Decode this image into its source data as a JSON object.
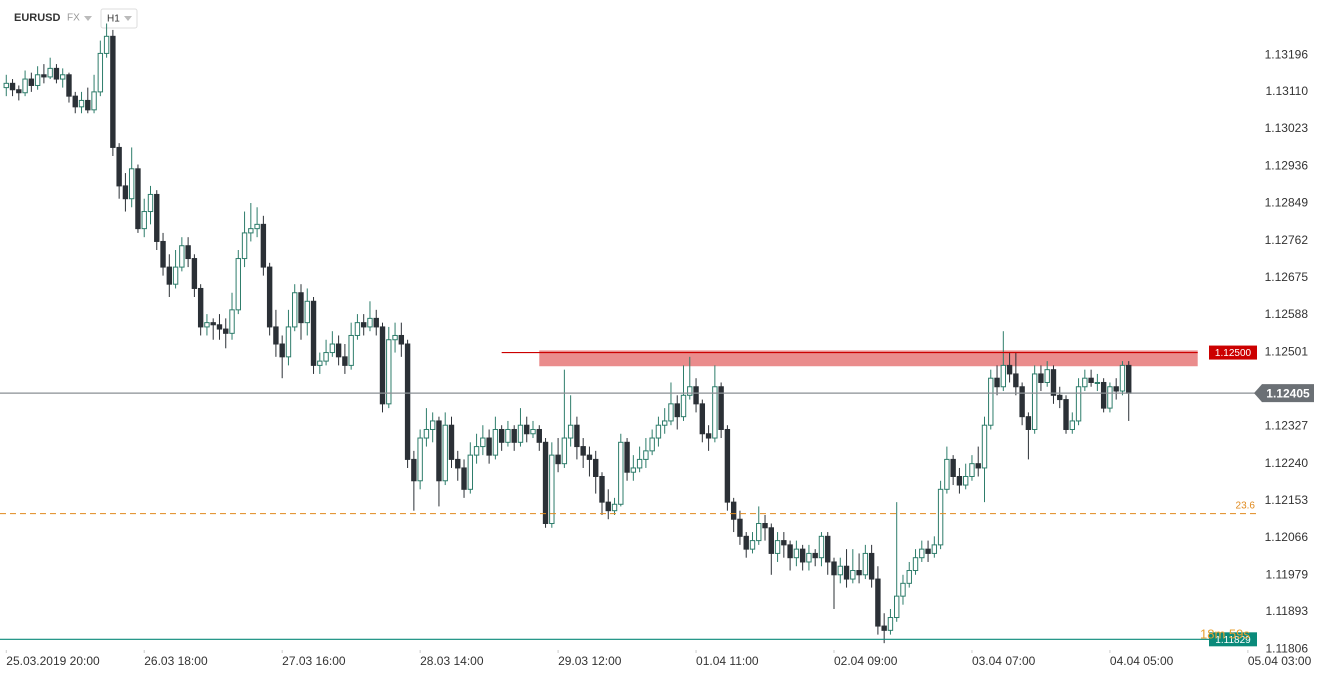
{
  "chart_data": {
    "type": "candlestick",
    "symbol": "EURUSD",
    "market": "FX",
    "interval": "H1",
    "countdown": "18m 59s",
    "up_color": "#2e7d6b",
    "down_color": "#2b3036",
    "open": [
      1.1312,
      1.1313,
      1.13115,
      1.13108,
      1.1314,
      1.13125,
      1.1315,
      1.13145,
      1.13165,
      1.1314,
      1.1315,
      1.131,
      1.13075,
      1.1309,
      1.13068,
      1.1311,
      1.132,
      1.1324,
      1.1298,
      1.1289,
      1.1286,
      1.1293,
      1.1279,
      1.1283,
      1.1287,
      1.1276,
      1.127,
      1.1266,
      1.127,
      1.1275,
      1.1272,
      1.1265,
      1.1256,
      1.1257,
      1.12565,
      1.12555,
      1.12545,
      1.126,
      1.1272,
      1.1278,
      1.1279,
      1.128,
      1.127,
      1.1256,
      1.1252,
      1.1249,
      1.1256,
      1.1264,
      1.1257,
      1.1262,
      1.1247,
      1.1248,
      1.125,
      1.1252,
      1.1249,
      1.1247,
      1.1254,
      1.1257,
      1.1256,
      1.1258,
      1.1256,
      1.1238,
      1.1253,
      1.1254,
      1.1252,
      1.1225,
      1.122,
      1.123,
      1.1232,
      1.1234,
      1.122,
      1.1233,
      1.1225,
      1.1223,
      1.1218,
      1.1226,
      1.1228,
      1.123,
      1.1226,
      1.1232,
      1.1229,
      1.1232,
      1.1229,
      1.1233,
      1.1231,
      1.1232,
      1.1229,
      1.121,
      1.1226,
      1.1224,
      1.123,
      1.1233,
      1.1228,
      1.1226,
      1.1225,
      1.1221,
      1.1215,
      1.1213,
      1.12145,
      1.1229,
      1.1222,
      1.1223,
      1.1225,
      1.1227,
      1.123,
      1.1233,
      1.1234,
      1.1238,
      1.1235,
      1.124,
      1.1242,
      1.1238,
      1.1231,
      1.123,
      1.1242,
      1.1232,
      1.1215,
      1.1211,
      1.1207,
      1.1204,
      1.1206,
      1.121,
      1.1209,
      1.1203,
      1.1206,
      1.1205,
      1.1202,
      1.1204,
      1.1201,
      1.1203,
      1.1202,
      1.1207,
      1.1201,
      1.1198,
      1.12,
      1.1197,
      1.1199,
      1.1198,
      1.1203,
      1.1197,
      1.1186,
      1.1185,
      1.1188,
      1.1193,
      1.1196,
      1.1199,
      1.1202,
      1.1204,
      1.1203,
      1.1205,
      1.1218,
      1.1225,
      1.1221,
      1.1219,
      1.1221,
      1.1224,
      1.1223,
      1.1233,
      1.1244,
      1.1242,
      1.1247,
      1.1245,
      1.1242,
      1.1235,
      1.1232,
      1.1245,
      1.1243,
      1.1246,
      1.124,
      1.1239,
      1.1232,
      1.1234,
      1.1242,
      1.1244,
      1.1243,
      1.1243,
      1.1237,
      1.1242,
      1.1241,
      1.1247
    ],
    "high": [
      1.1315,
      1.1314,
      1.13125,
      1.1316,
      1.13155,
      1.1317,
      1.13175,
      1.1319,
      1.13175,
      1.13165,
      1.13155,
      1.1311,
      1.1311,
      1.1312,
      1.1315,
      1.1323,
      1.1327,
      1.13255,
      1.1299,
      1.1292,
      1.1298,
      1.1294,
      1.1286,
      1.1289,
      1.1288,
      1.1278,
      1.1273,
      1.1274,
      1.1277,
      1.1277,
      1.1273,
      1.1266,
      1.1259,
      1.1258,
      1.1259,
      1.1258,
      1.1264,
      1.1274,
      1.1283,
      1.1285,
      1.1284,
      1.1282,
      1.1271,
      1.126,
      1.1254,
      1.126,
      1.1266,
      1.1266,
      1.1265,
      1.1263,
      1.125,
      1.1253,
      1.1255,
      1.1254,
      1.1252,
      1.1257,
      1.1259,
      1.1259,
      1.1262,
      1.126,
      1.1257,
      1.1256,
      1.1257,
      1.1257,
      1.1253,
      1.1227,
      1.1232,
      1.1237,
      1.1236,
      1.1235,
      1.1236,
      1.1235,
      1.1227,
      1.1225,
      1.1229,
      1.1231,
      1.1233,
      1.1232,
      1.1235,
      1.1233,
      1.1234,
      1.1233,
      1.1237,
      1.1235,
      1.1234,
      1.1233,
      1.123,
      1.1229,
      1.123,
      1.1246,
      1.124,
      1.1235,
      1.123,
      1.1228,
      1.1227,
      1.1222,
      1.1218,
      1.1216,
      1.1231,
      1.123,
      1.1226,
      1.1228,
      1.123,
      1.1232,
      1.1235,
      1.1237,
      1.1243,
      1.124,
      1.1247,
      1.1249,
      1.1244,
      1.1239,
      1.1233,
      1.1247,
      1.1243,
      1.1233,
      1.1216,
      1.1213,
      1.1208,
      1.1208,
      1.1214,
      1.1212,
      1.121,
      1.1208,
      1.1208,
      1.1206,
      1.1206,
      1.1205,
      1.1205,
      1.1204,
      1.1208,
      1.1208,
      1.1202,
      1.1202,
      1.1204,
      1.1204,
      1.1203,
      1.1205,
      1.1205,
      1.12,
      1.1189,
      1.119,
      1.1215,
      1.1198,
      1.1201,
      1.1204,
      1.1206,
      1.1206,
      1.1207,
      1.122,
      1.1228,
      1.1226,
      1.1223,
      1.1224,
      1.1226,
      1.1228,
      1.1235,
      1.1246,
      1.1247,
      1.1255,
      1.125,
      1.125,
      1.1243,
      1.1236,
      1.1247,
      1.1247,
      1.1248,
      1.1247,
      1.1242,
      1.124,
      1.1236,
      1.1244,
      1.1246,
      1.1246,
      1.1245,
      1.1244,
      1.1243,
      1.1244,
      1.1248,
      1.1248
    ],
    "low": [
      1.131,
      1.131,
      1.1309,
      1.131,
      1.1311,
      1.13115,
      1.1313,
      1.1314,
      1.1313,
      1.1312,
      1.13085,
      1.1306,
      1.1306,
      1.1306,
      1.1306,
      1.131,
      1.1319,
      1.1296,
      1.1286,
      1.1283,
      1.1284,
      1.1278,
      1.1277,
      1.128,
      1.1274,
      1.1268,
      1.1263,
      1.1265,
      1.1269,
      1.127,
      1.1263,
      1.1254,
      1.1254,
      1.1253,
      1.1253,
      1.1251,
      1.1253,
      1.1259,
      1.127,
      1.1276,
      1.1277,
      1.1268,
      1.1254,
      1.1249,
      1.1244,
      1.1247,
      1.1255,
      1.1253,
      1.1254,
      1.1245,
      1.1245,
      1.1247,
      1.1249,
      1.1247,
      1.1245,
      1.1246,
      1.1253,
      1.1254,
      1.1255,
      1.1254,
      1.1236,
      1.1237,
      1.125,
      1.1249,
      1.1223,
      1.1213,
      1.1218,
      1.1228,
      1.1229,
      1.1214,
      1.1219,
      1.1223,
      1.122,
      1.1216,
      1.1217,
      1.1224,
      1.1226,
      1.1224,
      1.1225,
      1.1227,
      1.1228,
      1.1227,
      1.1228,
      1.1229,
      1.123,
      1.1227,
      1.1209,
      1.1209,
      1.1222,
      1.1223,
      1.1228,
      1.1225,
      1.1223,
      1.1221,
      1.1217,
      1.1212,
      1.1211,
      1.1212,
      1.1214,
      1.122,
      1.122,
      1.1222,
      1.1223,
      1.1226,
      1.1228,
      1.1231,
      1.1233,
      1.1232,
      1.1234,
      1.1239,
      1.1236,
      1.1229,
      1.1227,
      1.1229,
      1.123,
      1.1213,
      1.1208,
      1.1205,
      1.1202,
      1.1203,
      1.1205,
      1.1206,
      1.1198,
      1.1201,
      1.1202,
      1.1199,
      1.12,
      1.1199,
      1.1199,
      1.12,
      1.12,
      1.1198,
      1.119,
      1.1196,
      1.1195,
      1.1196,
      1.1196,
      1.1197,
      1.1195,
      1.1184,
      1.1182,
      1.1184,
      1.1187,
      1.1191,
      1.1195,
      1.1198,
      1.1201,
      1.1201,
      1.1202,
      1.1204,
      1.1217,
      1.1219,
      1.1217,
      1.1218,
      1.122,
      1.1221,
      1.1215,
      1.1232,
      1.124,
      1.1241,
      1.1243,
      1.124,
      1.1233,
      1.1225,
      1.1231,
      1.1241,
      1.1242,
      1.1238,
      1.1237,
      1.1231,
      1.1231,
      1.1233,
      1.1241,
      1.1242,
      1.1241,
      1.1236,
      1.1236,
      1.1239,
      1.124,
      1.1234
    ],
    "close": [
      1.1313,
      1.13115,
      1.13108,
      1.1314,
      1.13125,
      1.1315,
      1.13145,
      1.13165,
      1.1314,
      1.1315,
      1.131,
      1.13075,
      1.1309,
      1.13068,
      1.1311,
      1.132,
      1.1324,
      1.1298,
      1.1289,
      1.1286,
      1.1293,
      1.1279,
      1.1283,
      1.1287,
      1.1276,
      1.127,
      1.1266,
      1.127,
      1.1275,
      1.1272,
      1.1265,
      1.1256,
      1.1257,
      1.12565,
      1.12555,
      1.12545,
      1.126,
      1.1272,
      1.1278,
      1.1279,
      1.128,
      1.127,
      1.1256,
      1.1252,
      1.1249,
      1.1256,
      1.1264,
      1.1257,
      1.1262,
      1.1247,
      1.1248,
      1.125,
      1.1252,
      1.1249,
      1.1247,
      1.1254,
      1.1257,
      1.1256,
      1.1258,
      1.1256,
      1.1238,
      1.1253,
      1.1254,
      1.1252,
      1.1225,
      1.122,
      1.123,
      1.1232,
      1.1234,
      1.122,
      1.1233,
      1.1225,
      1.1223,
      1.1218,
      1.1226,
      1.1228,
      1.123,
      1.1226,
      1.1232,
      1.1229,
      1.1232,
      1.1229,
      1.1233,
      1.1231,
      1.1232,
      1.1229,
      1.121,
      1.1226,
      1.1224,
      1.123,
      1.1233,
      1.1228,
      1.1226,
      1.1225,
      1.1221,
      1.1215,
      1.1213,
      1.12145,
      1.1229,
      1.1222,
      1.1223,
      1.1225,
      1.1227,
      1.123,
      1.1233,
      1.1234,
      1.1238,
      1.1235,
      1.124,
      1.1242,
      1.1238,
      1.1231,
      1.123,
      1.1242,
      1.1232,
      1.1215,
      1.1211,
      1.1207,
      1.1204,
      1.1206,
      1.121,
      1.1209,
      1.1203,
      1.1206,
      1.1205,
      1.1202,
      1.1204,
      1.1201,
      1.1203,
      1.1202,
      1.1207,
      1.1201,
      1.1198,
      1.12,
      1.1197,
      1.1199,
      1.1198,
      1.1203,
      1.1197,
      1.1186,
      1.1185,
      1.1188,
      1.1193,
      1.1196,
      1.1199,
      1.1202,
      1.1204,
      1.1203,
      1.1205,
      1.1218,
      1.1225,
      1.1221,
      1.1219,
      1.1221,
      1.1224,
      1.1223,
      1.1233,
      1.1244,
      1.1242,
      1.1247,
      1.1245,
      1.1242,
      1.1235,
      1.1232,
      1.1245,
      1.1243,
      1.1246,
      1.124,
      1.1239,
      1.1232,
      1.1234,
      1.1242,
      1.1244,
      1.1243,
      1.1243,
      1.1237,
      1.1242,
      1.1241,
      1.1247,
      1.12405
    ],
    "xlim": [
      -1,
      210.3
    ],
    "ylim": [
      1.11804,
      1.13325
    ],
    "xticks": [
      {
        "value": 0,
        "label": "25.03.2019  20:00"
      },
      {
        "value": 22,
        "label": "26.03  18:00"
      },
      {
        "value": 44,
        "label": "27.03  16:00"
      },
      {
        "value": 66,
        "label": "28.03  14:00"
      },
      {
        "value": 88,
        "label": "29.03  12:00"
      },
      {
        "value": 110,
        "label": "01.04  11:00"
      },
      {
        "value": 132,
        "label": "02.04  09:00"
      },
      {
        "value": 154,
        "label": "03.04  07:00"
      },
      {
        "value": 176,
        "label": "04.04  05:00"
      },
      {
        "value": 198,
        "label": "05.04  03:00"
      }
    ],
    "yticks": [
      {
        "value": 1.13196,
        "label": "1.13196"
      },
      {
        "value": 1.1311,
        "label": "1.13110"
      },
      {
        "value": 1.13023,
        "label": "1.13023"
      },
      {
        "value": 1.12936,
        "label": "1.12936"
      },
      {
        "value": 1.12849,
        "label": "1.12849"
      },
      {
        "value": 1.12762,
        "label": "1.12762"
      },
      {
        "value": 1.12675,
        "label": "1.12675"
      },
      {
        "value": 1.12588,
        "label": "1.12588"
      },
      {
        "value": 1.12501,
        "label": "1.12501"
      },
      {
        "value": 1.12327,
        "label": "1.12327"
      },
      {
        "value": 1.1224,
        "label": "1.12240"
      },
      {
        "value": 1.12153,
        "label": "1.12153"
      },
      {
        "value": 1.12066,
        "label": "1.12066"
      },
      {
        "value": 1.11979,
        "label": "1.11979"
      },
      {
        "value": 1.11893,
        "label": "1.11893"
      },
      {
        "value": 1.11806,
        "label": "1.11806"
      }
    ],
    "zone": {
      "range": [
        1.12468,
        1.12505
      ],
      "x": [
        85,
        190
      ],
      "color": "#e88080"
    },
    "levels": [
      {
        "value": 1.125,
        "label": "1.12500",
        "color": "#cc0000",
        "style": "solid",
        "x": [
          79,
          190
        ],
        "label_style": "box"
      },
      {
        "value": 1.12405,
        "label": "1.12405",
        "color": "#8a8f94",
        "style": "solid",
        "x": [
          -1,
          200
        ],
        "label_style": "axis"
      },
      {
        "value": 1.12123,
        "label": "23.6",
        "color": "#e08a1e",
        "style": "dashed",
        "x": [
          -1,
          200
        ],
        "label_style": "text"
      },
      {
        "value": 1.11829,
        "label": "1.11829",
        "color": "#0a8a7a",
        "style": "solid",
        "x": [
          -1,
          200
        ],
        "label_style": "box"
      }
    ]
  }
}
